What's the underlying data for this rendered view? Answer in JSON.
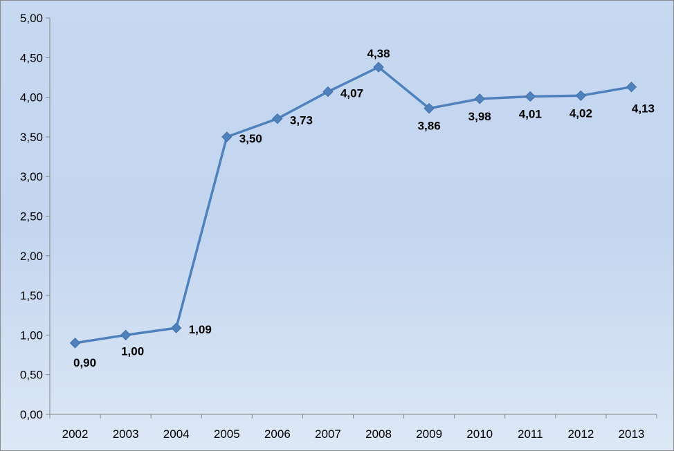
{
  "chart_data": {
    "type": "line",
    "categories": [
      "2002",
      "2003",
      "2004",
      "2005",
      "2006",
      "2007",
      "2008",
      "2009",
      "2010",
      "2011",
      "2012",
      "2013"
    ],
    "values": [
      0.9,
      1.0,
      1.09,
      3.5,
      3.73,
      4.07,
      4.38,
      3.86,
      3.98,
      4.01,
      4.02,
      4.13
    ],
    "data_labels": [
      "0,90",
      "1,00",
      "1,09",
      "3,50",
      "3,73",
      "4,07",
      "4,38",
      "3,86",
      "3,98",
      "4,01",
      "4,02",
      "4,13"
    ],
    "yticks": [
      0,
      0.5,
      1,
      1.5,
      2,
      2.5,
      3,
      3.5,
      4,
      4.5,
      5
    ],
    "ytick_labels": [
      "0,00",
      "0,50",
      "1,00",
      "1,50",
      "2,00",
      "2,50",
      "3,00",
      "3,50",
      "4,00",
      "4,50",
      "5,00"
    ],
    "ylim": [
      0,
      5
    ],
    "title": "",
    "xlabel": "",
    "ylabel": "",
    "grid": false,
    "legend": "none",
    "line_color": "#4f81bd",
    "marker": "diamond"
  }
}
